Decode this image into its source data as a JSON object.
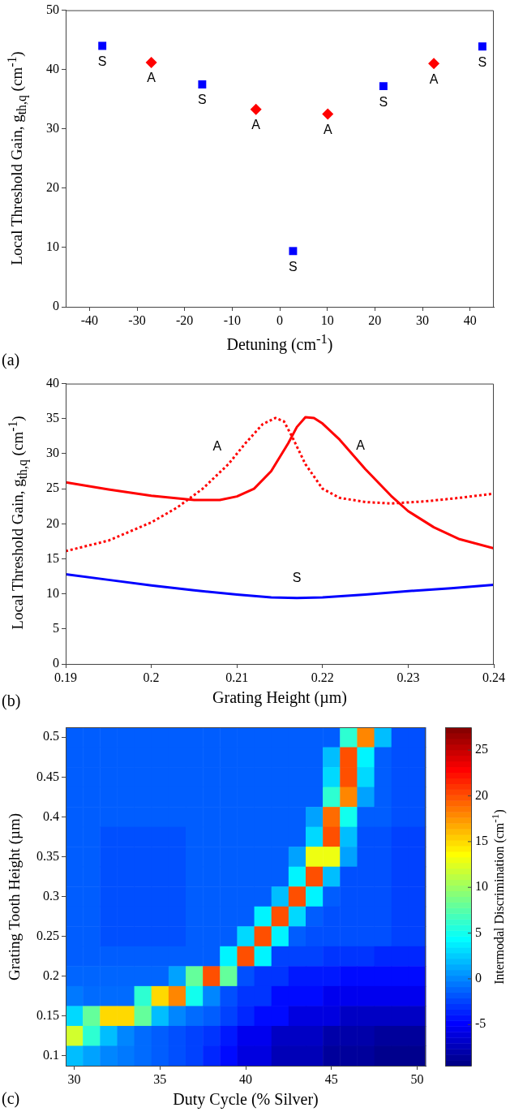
{
  "chart_data": [
    {
      "type": "scatter",
      "xlabel": "Detuning (cm$^{-1}$)",
      "ylabel": "Local Threshold Gain, g$_{th,q}$ (cm$^{-1}$)",
      "annotations": [
        "(a)"
      ],
      "xlim": [
        -45,
        45
      ],
      "xticks": [
        -40,
        -30,
        -20,
        -10,
        0,
        10,
        20,
        30,
        40
      ],
      "ylim": [
        0,
        50
      ],
      "yticks": [
        0,
        10,
        20,
        30,
        40,
        50
      ],
      "grid": false,
      "legend": false,
      "series": [
        {
          "name": "S",
          "color": "#0000ff",
          "marker": "square",
          "x": [
            -37.3,
            -16.3,
            2.8,
            21.8,
            42.6
          ],
          "values": [
            44,
            37.5,
            9.4,
            37.2,
            43.9
          ]
        },
        {
          "name": "A",
          "color": "#ff0000",
          "marker": "diamond",
          "x": [
            -27,
            -5,
            10.1,
            32.4
          ],
          "values": [
            41.2,
            33.3,
            32.5,
            41
          ]
        }
      ]
    },
    {
      "type": "line",
      "xlabel": "Grating Height (µm)",
      "ylabel": "Local Threshold Gain, g$_{th,q}$ (cm$^{-1}$)",
      "annotations": [
        "(b)"
      ],
      "xlim": [
        0.19,
        0.24
      ],
      "xticks": [
        0.19,
        {
          "value": 0.2,
          "label": "0.2"
        },
        0.21,
        0.22,
        0.23,
        0.24
      ],
      "ylim": [
        0,
        40
      ],
      "yticks": [
        0,
        5,
        10,
        15,
        20,
        25,
        30,
        35,
        40
      ],
      "grid": false,
      "legend": false,
      "marker": "none",
      "series": [
        {
          "name": "A",
          "color": "#ff0000",
          "line_style": "solid",
          "x": [
            0.19,
            0.195,
            0.2,
            0.205,
            0.208,
            0.21,
            0.212,
            0.214,
            0.216,
            0.217,
            0.218,
            0.219,
            0.22,
            0.222,
            0.225,
            0.228,
            0.23,
            0.233,
            0.236,
            0.24
          ],
          "values": [
            25.9,
            24.9,
            24.0,
            23.4,
            23.4,
            23.9,
            25.0,
            27.5,
            31.5,
            33.8,
            35.2,
            35.1,
            34.3,
            32,
            27.8,
            24,
            21.8,
            19.5,
            17.8,
            16.5
          ]
        },
        {
          "name": "A",
          "color": "#ff0000",
          "line_style": "dotted",
          "x": [
            0.19,
            0.195,
            0.2,
            0.203,
            0.206,
            0.209,
            0.211,
            0.213,
            0.2145,
            0.2155,
            0.2165,
            0.218,
            0.22,
            0.222,
            0.225,
            0.228,
            0.232,
            0.236,
            0.24
          ],
          "values": [
            16.1,
            17.6,
            20.2,
            22.3,
            25,
            28.5,
            31.5,
            34.2,
            35.1,
            34.6,
            32.3,
            28.5,
            25,
            23.7,
            23.1,
            22.9,
            23.2,
            23.7,
            24.3
          ]
        },
        {
          "name": "S",
          "color": "#0000ff",
          "line_style": "solid",
          "x": [
            0.19,
            0.195,
            0.2,
            0.205,
            0.21,
            0.214,
            0.217,
            0.22,
            0.225,
            0.23,
            0.235,
            0.24
          ],
          "values": [
            12.8,
            12.0,
            11.2,
            10.5,
            9.9,
            9.5,
            9.4,
            9.5,
            9.9,
            10.4,
            10.8,
            11.3
          ]
        }
      ]
    },
    {
      "type": "heatmap",
      "xlabel": "Duty Cycle (% Silver)",
      "ylabel": "Grating Tooth Height (µm)",
      "clabel": "Intermodal Discrimination (cm$^{-1}$)",
      "annotations": [
        "(c)"
      ],
      "clim": [
        -9.5,
        27.5
      ],
      "cticks": [
        -5,
        0,
        5,
        10,
        15,
        20,
        25
      ],
      "categories": [
        "30",
        null,
        null,
        null,
        null,
        "35",
        null,
        null,
        null,
        null,
        "40",
        null,
        null,
        null,
        null,
        "45",
        null,
        null,
        null,
        null,
        "50"
      ],
      "y_categories": [
        "0.5",
        null,
        "0.45",
        null,
        "0.4",
        null,
        "0.35",
        null,
        "0.3",
        null,
        "0.25",
        null,
        "0.2",
        null,
        "0.15",
        null,
        "0.1"
      ],
      "cells": [
        [
          -1.5,
          -1.5,
          -1.5,
          -1.5,
          -1.5,
          -1.5,
          -1.5,
          -1.5,
          -1.5,
          -1.5,
          -1.5,
          -1.5,
          -1.5,
          -1.5,
          -1.5,
          -1.5,
          6,
          18,
          2,
          -2,
          -2
        ],
        [
          -1.5,
          -1.5,
          -1.5,
          -1.5,
          -1.5,
          -1.5,
          -1.5,
          -1.5,
          -1.5,
          -1.5,
          -1.5,
          -1.5,
          -1.5,
          -1.5,
          -1.5,
          2,
          20,
          4,
          -1.5,
          -2,
          -2
        ],
        [
          -1.5,
          -1.5,
          -1.5,
          -1.5,
          -1.5,
          -1.5,
          -1.5,
          -1.5,
          -1.5,
          -1.5,
          -1.5,
          -1.5,
          -1.5,
          -1.5,
          -1.5,
          3,
          20,
          3,
          -1.5,
          -2,
          -2
        ],
        [
          -1.5,
          -1.5,
          -1.5,
          -1.5,
          -1.5,
          -1.5,
          -1.5,
          -1.5,
          -1.5,
          -1.5,
          -1.5,
          -1.5,
          -1.5,
          -1.5,
          -1.5,
          6,
          18,
          1,
          -1.5,
          -2,
          -2
        ],
        [
          -1.5,
          -1.5,
          -1.5,
          -1.5,
          -1.5,
          -1.5,
          -1.5,
          -1.5,
          -1.5,
          -1.5,
          -1.5,
          -1.5,
          -1.5,
          -1.5,
          1,
          19,
          5,
          -1.5,
          -1.5,
          -2,
          -2
        ],
        [
          -1.5,
          -1.5,
          -2,
          -2,
          -2,
          -2,
          -2,
          -1.5,
          -1.5,
          -1.5,
          -1.5,
          -1.5,
          -1.5,
          -1.5,
          3,
          20,
          2,
          -2,
          -2,
          -2.5,
          -2.5
        ],
        [
          -1.5,
          -1.5,
          -2,
          -2,
          -2,
          -2,
          -2,
          -1.5,
          -1.5,
          -1.5,
          -1.5,
          -1.5,
          -1.5,
          1,
          13,
          13,
          1,
          -2,
          -2,
          -2.5,
          -2.5
        ],
        [
          -1.5,
          -1.5,
          -2,
          -2,
          -2,
          -2,
          -2,
          -1.5,
          -1.5,
          -1.5,
          -1.5,
          -1.5,
          -1.5,
          4,
          20,
          2,
          -2,
          -2,
          -2,
          -2.5,
          -2.5
        ],
        [
          -1.5,
          -1.5,
          -2,
          -2,
          -2,
          -2,
          -2,
          -1.5,
          -1.5,
          -1.5,
          -1.5,
          -1.5,
          2,
          20,
          4,
          -1.5,
          -2,
          -2,
          -2,
          -2.5,
          -2.5
        ],
        [
          -1.5,
          -1.5,
          -2,
          -2,
          -2,
          -2,
          -2,
          -1.5,
          -1.5,
          -1.5,
          -1.5,
          4,
          20,
          3,
          -1.5,
          -2,
          -2,
          -2,
          -2,
          -2.5,
          -2.5
        ],
        [
          -1.5,
          -1.5,
          -2,
          -2,
          -2,
          -2,
          -2,
          -1.5,
          -1.5,
          -1.5,
          3,
          20,
          4,
          -1.5,
          -2,
          -2,
          -2,
          -2,
          -2,
          -2.5,
          -2.5
        ],
        [
          -1.5,
          -1.5,
          -1.5,
          -1.5,
          -1.5,
          -1.5,
          -1.5,
          -1.5,
          -1.5,
          4,
          20,
          4,
          -2.5,
          -2.5,
          -2.5,
          -3,
          -3,
          -3,
          -3.5,
          -3.5,
          -3.5
        ],
        [
          -1.2,
          -1.2,
          -1.2,
          -1.2,
          -1.2,
          -1.2,
          1,
          8,
          20,
          8,
          -2,
          -3,
          -3,
          -4,
          -4,
          -4,
          -4.5,
          -4.5,
          -4.5,
          -4.5,
          -4.5
        ],
        [
          -0.5,
          -1,
          -1,
          -1,
          6,
          15,
          18,
          5,
          0,
          -2,
          -3,
          -3,
          -4.5,
          -4.5,
          -4.5,
          -5.5,
          -5.5,
          -5.5,
          -5.5,
          -5.5,
          -5.5
        ],
        [
          3,
          8,
          15,
          15,
          8,
          2,
          0,
          -1,
          -1.5,
          -2.5,
          -3.5,
          -4.5,
          -4.5,
          -6,
          -6,
          -6,
          -7,
          -7,
          -7,
          -7,
          -7
        ],
        [
          12,
          6,
          2,
          0,
          -1,
          -1.5,
          -2,
          -2.5,
          -3,
          -4,
          -5.5,
          -5.5,
          -7,
          -7,
          -7,
          -8,
          -8,
          -8,
          -8.5,
          -8.5,
          -8.5
        ],
        [
          2,
          1,
          0,
          -0.5,
          -1,
          -1.5,
          -2,
          -2.5,
          -3.5,
          -4.5,
          -6,
          -6,
          -7.5,
          -7.5,
          -7.5,
          -8.5,
          -8.5,
          -8.5,
          -9,
          -9,
          -9
        ]
      ]
    }
  ]
}
